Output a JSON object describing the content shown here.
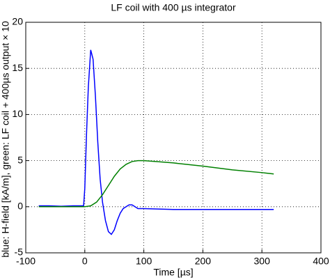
{
  "chart_data": {
    "type": "line",
    "title": "LF coil with 400 µs integrator",
    "x_label": "Time [µs]",
    "y_label": "blue: H-field [kA/m], green: LF coil + 400µs output × 10",
    "xlim": [
      -100,
      400
    ],
    "xticks": [
      -100,
      0,
      100,
      200,
      300,
      400
    ],
    "ylim": [
      -5,
      20
    ],
    "yticks": [
      -5,
      0,
      5,
      10,
      15,
      20
    ],
    "grid": true,
    "series": [
      {
        "color": "#0000ff",
        "x": [
          -78,
          -60,
          -40,
          -20,
          -2,
          0,
          3,
          6,
          10,
          14,
          18,
          22,
          26,
          30,
          35,
          40,
          45,
          50,
          55,
          60,
          65,
          70,
          75,
          80,
          85,
          90,
          100,
          150,
          200,
          250,
          320
        ],
        "values": [
          0.1,
          0.1,
          0.05,
          0.1,
          0.1,
          2,
          8,
          13,
          17,
          16,
          12,
          7,
          3,
          0.5,
          -1.5,
          -2.7,
          -3.0,
          -2.5,
          -1.5,
          -0.7,
          -0.2,
          0,
          0.2,
          0.2,
          0,
          -0.2,
          -0.2,
          -0.3,
          -0.3,
          -0.3,
          -0.3
        ]
      },
      {
        "color": "#008000",
        "x": [
          -78,
          0,
          10,
          20,
          30,
          40,
          50,
          60,
          70,
          80,
          90,
          100,
          120,
          150,
          200,
          250,
          300,
          320
        ],
        "values": [
          0,
          0,
          0.1,
          0.5,
          1.3,
          2.3,
          3.3,
          4.1,
          4.6,
          4.9,
          5.0,
          5.0,
          4.9,
          4.75,
          4.4,
          4.0,
          3.7,
          3.55
        ]
      }
    ]
  }
}
